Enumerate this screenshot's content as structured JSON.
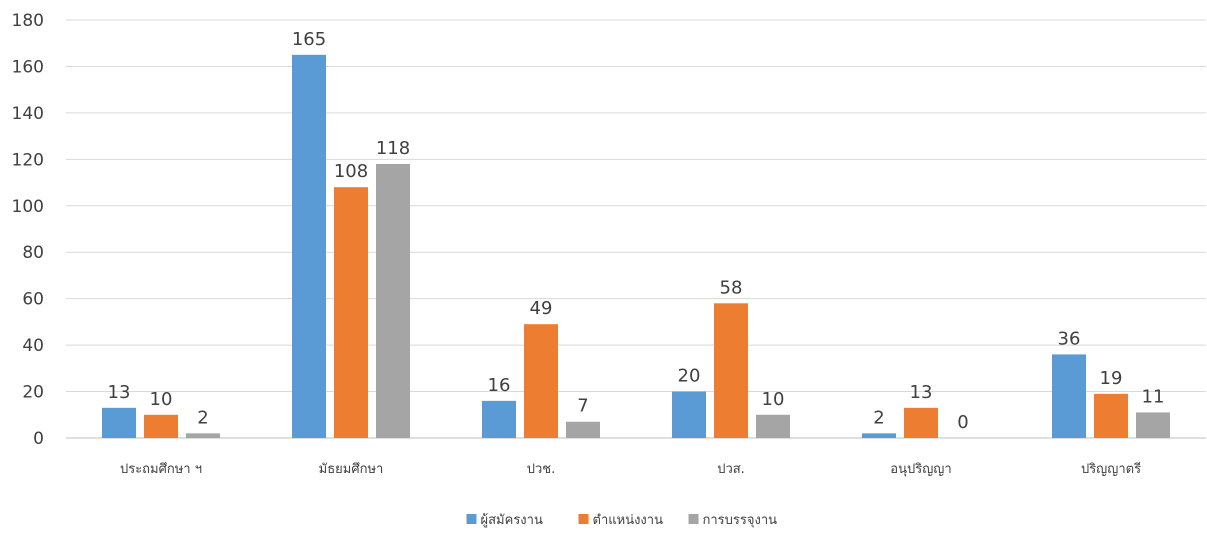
{
  "chart_data": {
    "type": "bar",
    "title": "",
    "xlabel": "",
    "ylabel": "",
    "categories": [
      "ประถมศึกษา ฯ",
      "มัธยมศึกษา",
      "ปวช.",
      "ปวส.",
      "อนุปริญญา",
      "ปริญญาตรี"
    ],
    "series": [
      {
        "name": "ผู้สมัครงาน",
        "color": "#5B9BD5",
        "values": [
          13,
          165,
          16,
          20,
          2,
          36
        ]
      },
      {
        "name": "ตำแหน่งงาน",
        "color": "#ED7D31",
        "values": [
          10,
          108,
          49,
          58,
          13,
          19
        ]
      },
      {
        "name": "การบรรจุงาน",
        "color": "#A5A5A5",
        "values": [
          2,
          118,
          7,
          10,
          0,
          11
        ]
      }
    ],
    "ylim": [
      0,
      180
    ],
    "yticks": [
      0,
      20,
      40,
      60,
      80,
      100,
      120,
      140,
      160,
      180
    ],
    "grid": true,
    "legend": "bottom",
    "data_labels": true
  }
}
